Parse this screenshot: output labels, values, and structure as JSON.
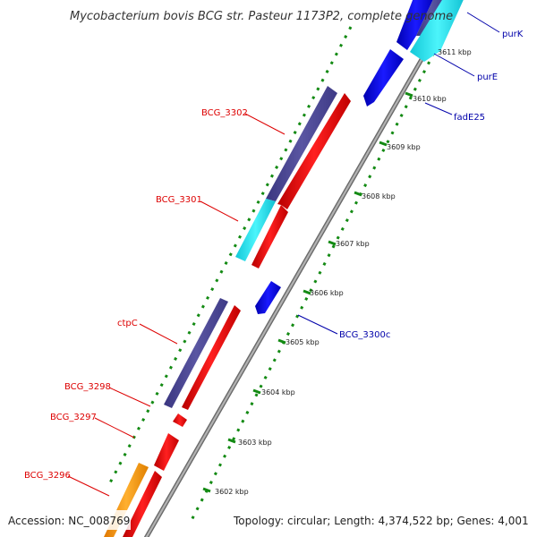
{
  "title": "Mycobacterium bovis BCG str. Pasteur 1173P2, complete genome",
  "footer": {
    "accession": "Accession: NC_008769",
    "summary": "Topology: circular; Length: 4,374,522 bp; Genes: 4,001"
  },
  "ticks": [
    {
      "label": "3611 kbp"
    },
    {
      "label": "3610 kbp"
    },
    {
      "label": "3609 kbp"
    },
    {
      "label": "3608 kbp"
    },
    {
      "label": "3607 kbp"
    },
    {
      "label": "3606 kbp"
    },
    {
      "label": "3605 kbp"
    },
    {
      "label": "3604 kbp"
    },
    {
      "label": "3603 kbp"
    },
    {
      "label": "3602 kbp"
    }
  ],
  "labels_left": [
    {
      "text": "BCG_3302"
    },
    {
      "text": "BCG_3301"
    },
    {
      "text": "ctpC"
    },
    {
      "text": "BCG_3298"
    },
    {
      "text": "BCG_3297"
    },
    {
      "text": "BCG_3296"
    }
  ],
  "labels_right": [
    {
      "text": "purK"
    },
    {
      "text": "purE"
    },
    {
      "text": "fadE25"
    },
    {
      "text": "BCG_3300c"
    }
  ],
  "colors": {
    "gene_red": "#ff0000",
    "cds_purple": "#4b4690",
    "cds_cyan": "#19e6f0",
    "cds_blue": "#0a00e0",
    "cds_orange": "#ff9a00",
    "tick_green": "#138a13",
    "backbone": "#9a9a9a",
    "label_red": "#dd0000",
    "label_blue": "#0000aa"
  }
}
